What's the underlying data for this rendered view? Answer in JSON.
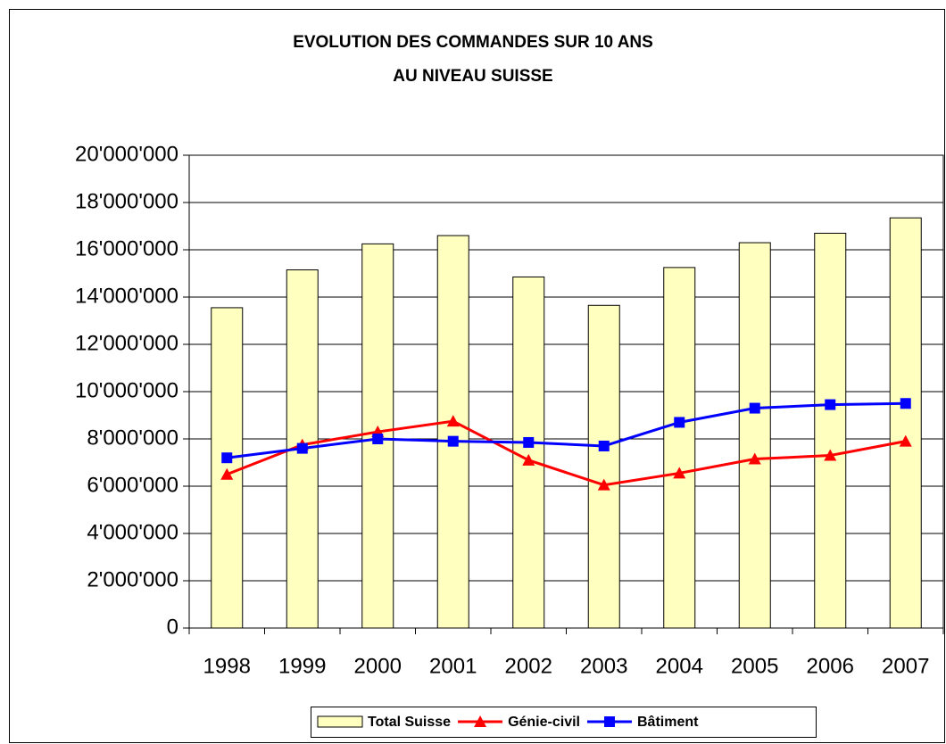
{
  "chart_data": {
    "type": "bar",
    "title": [
      "EVOLUTION DES COMMANDES SUR 10 ANS",
      "AU NIVEAU SUISSE"
    ],
    "categories": [
      "1998",
      "1999",
      "2000",
      "2001",
      "2002",
      "2003",
      "2004",
      "2005",
      "2006",
      "2007"
    ],
    "series": [
      {
        "name": "Total Suisse",
        "type": "bar",
        "color": "#ffffc0",
        "values": [
          13550000,
          15150000,
          16250000,
          16600000,
          14850000,
          13650000,
          15250000,
          16300000,
          16700000,
          17350000
        ]
      },
      {
        "name": "Génie-civil",
        "type": "line",
        "marker": "triangle",
        "color": "#ff0000",
        "values": [
          6500000,
          7750000,
          8300000,
          8750000,
          7100000,
          6050000,
          6550000,
          7150000,
          7300000,
          7900000
        ]
      },
      {
        "name": "Bâtiment",
        "type": "line",
        "marker": "square",
        "color": "#0000ff",
        "values": [
          7200000,
          7600000,
          8000000,
          7900000,
          7850000,
          7700000,
          8700000,
          9300000,
          9450000,
          9500000
        ]
      }
    ],
    "ylim": [
      0,
      20000000
    ],
    "yticks": [
      0,
      {
        "value": 2000000,
        "label": "2'000'000"
      },
      {
        "value": 4000000,
        "label": "4'000'000"
      },
      {
        "value": 6000000,
        "label": "6'000'000"
      },
      {
        "value": 8000000,
        "label": "8'000'000"
      },
      {
        "value": 10000000,
        "label": "10'000'000"
      },
      {
        "value": 12000000,
        "label": "12'000'000"
      },
      {
        "value": 14000000,
        "label": "14'000'000"
      },
      {
        "value": 16000000,
        "label": "16'000'000"
      },
      {
        "value": 18000000,
        "label": "18'000'000"
      },
      {
        "value": 20000000,
        "label": "20'000'000"
      }
    ],
    "grid": true,
    "legend": "bottom"
  }
}
